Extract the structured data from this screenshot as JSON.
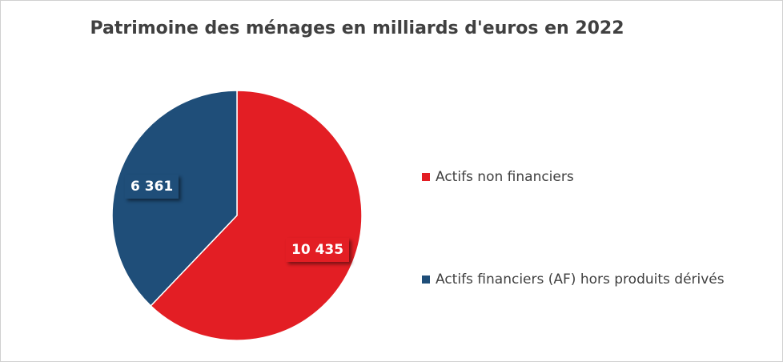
{
  "chart_data": {
    "type": "pie",
    "title": "Patrimoine des ménages en milliards d'euros en 2022",
    "legend_position": "right",
    "series": [
      {
        "categories": [
          "Actifs non financiers",
          "Actifs financiers (AF) hors produits dérivés"
        ],
        "values": [
          10435,
          6361
        ],
        "value_labels": [
          "10 435",
          "6 361"
        ],
        "colors": [
          "#E31E24",
          "#1F4E79"
        ]
      }
    ]
  }
}
